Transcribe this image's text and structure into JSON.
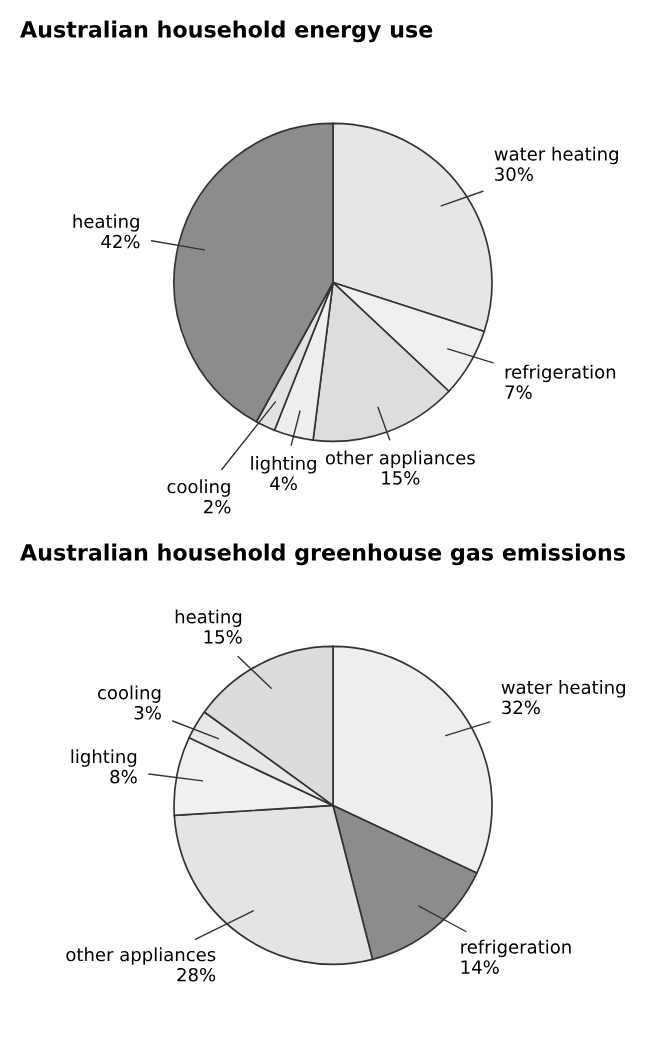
{
  "chart_data": [
    {
      "type": "pie",
      "title": "Australian household energy use",
      "categories": [
        "water heating",
        "refrigeration",
        "other appliances",
        "lighting",
        "cooling",
        "heating"
      ],
      "values": [
        30,
        7,
        15,
        4,
        2,
        42
      ],
      "value_labels": [
        "30%",
        "7%",
        "15%",
        "4%",
        "2%",
        "42%"
      ],
      "colors": [
        "#e6e6e6",
        "#f0f0f0",
        "#dddddd",
        "#eeeeee",
        "#e2e2e2",
        "#8c8c8c"
      ]
    },
    {
      "type": "pie",
      "title": "Australian household greenhouse gas emissions",
      "categories": [
        "water heating",
        "refrigeration",
        "other appliances",
        "lighting",
        "cooling",
        "heating"
      ],
      "values": [
        32,
        14,
        28,
        8,
        3,
        15
      ],
      "value_labels": [
        "32%",
        "14%",
        "28%",
        "8%",
        "3%",
        "15%"
      ],
      "colors": [
        "#eeeeee",
        "#8c8c8c",
        "#e4e4e4",
        "#f0f0f0",
        "#e8e8e8",
        "#dcdcdc"
      ]
    }
  ]
}
